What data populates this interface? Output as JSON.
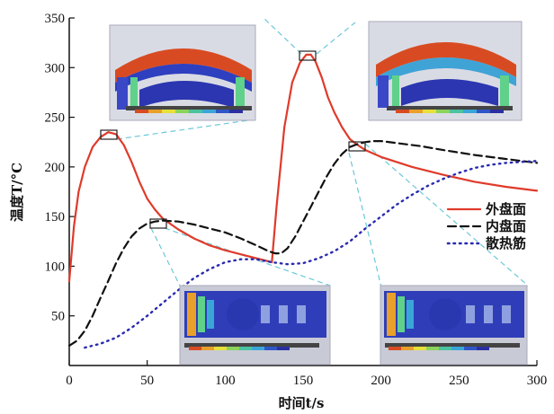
{
  "chart_data": {
    "type": "line",
    "xlabel": "时间t/s",
    "ylabel": "温度T/°C",
    "xlim": [
      0,
      300
    ],
    "ylim": [
      0,
      350
    ],
    "x_ticks": [
      "0",
      "50",
      "100",
      "150",
      "200",
      "250",
      "300"
    ],
    "y_ticks": [
      "50",
      "100",
      "150",
      "200",
      "250",
      "300",
      "350"
    ],
    "grid": false,
    "legend_position": "right",
    "series": [
      {
        "name": "外盘面",
        "color": "#e03a2a",
        "style": "solid",
        "points": [
          [
            0,
            85
          ],
          [
            3,
            140
          ],
          [
            6,
            175
          ],
          [
            10,
            200
          ],
          [
            15,
            220
          ],
          [
            20,
            230
          ],
          [
            25,
            235
          ],
          [
            30,
            233
          ],
          [
            35,
            222
          ],
          [
            40,
            205
          ],
          [
            45,
            185
          ],
          [
            50,
            168
          ],
          [
            55,
            157
          ],
          [
            60,
            148
          ],
          [
            70,
            137
          ],
          [
            80,
            128
          ],
          [
            90,
            121
          ],
          [
            100,
            116
          ],
          [
            110,
            112
          ],
          [
            120,
            108
          ],
          [
            130,
            104
          ],
          [
            133,
            160
          ],
          [
            138,
            240
          ],
          [
            143,
            285
          ],
          [
            148,
            305
          ],
          [
            152,
            313
          ],
          [
            155,
            313
          ],
          [
            158,
            306
          ],
          [
            162,
            290
          ],
          [
            166,
            270
          ],
          [
            170,
            255
          ],
          [
            175,
            240
          ],
          [
            180,
            228
          ],
          [
            185,
            222
          ],
          [
            190,
            217
          ],
          [
            200,
            210
          ],
          [
            220,
            200
          ],
          [
            240,
            192
          ],
          [
            260,
            185
          ],
          [
            280,
            180
          ],
          [
            300,
            176
          ]
        ]
      },
      {
        "name": "内盘面",
        "color": "#111111",
        "style": "dashed",
        "points": [
          [
            0,
            20
          ],
          [
            5,
            25
          ],
          [
            10,
            35
          ],
          [
            15,
            50
          ],
          [
            20,
            68
          ],
          [
            25,
            85
          ],
          [
            30,
            103
          ],
          [
            35,
            118
          ],
          [
            40,
            130
          ],
          [
            45,
            138
          ],
          [
            50,
            143
          ],
          [
            55,
            145
          ],
          [
            60,
            146
          ],
          [
            70,
            145
          ],
          [
            80,
            142
          ],
          [
            90,
            138
          ],
          [
            100,
            134
          ],
          [
            110,
            128
          ],
          [
            120,
            121
          ],
          [
            128,
            115
          ],
          [
            132,
            113
          ],
          [
            136,
            113
          ],
          [
            140,
            118
          ],
          [
            145,
            130
          ],
          [
            150,
            145
          ],
          [
            155,
            160
          ],
          [
            160,
            175
          ],
          [
            165,
            190
          ],
          [
            170,
            203
          ],
          [
            175,
            213
          ],
          [
            180,
            220
          ],
          [
            185,
            223
          ],
          [
            190,
            225
          ],
          [
            195,
            226
          ],
          [
            200,
            226
          ],
          [
            210,
            224
          ],
          [
            225,
            221
          ],
          [
            240,
            217
          ],
          [
            260,
            212
          ],
          [
            280,
            208
          ],
          [
            300,
            204
          ]
        ]
      },
      {
        "name": "散热筋",
        "color": "#2a2ab0",
        "style": "dotted",
        "points": [
          [
            10,
            18
          ],
          [
            20,
            22
          ],
          [
            30,
            28
          ],
          [
            40,
            38
          ],
          [
            50,
            50
          ],
          [
            60,
            63
          ],
          [
            70,
            76
          ],
          [
            80,
            88
          ],
          [
            90,
            97
          ],
          [
            100,
            104
          ],
          [
            110,
            107
          ],
          [
            120,
            107
          ],
          [
            130,
            104
          ],
          [
            140,
            102
          ],
          [
            150,
            103
          ],
          [
            160,
            108
          ],
          [
            170,
            115
          ],
          [
            180,
            125
          ],
          [
            190,
            138
          ],
          [
            200,
            150
          ],
          [
            210,
            162
          ],
          [
            220,
            172
          ],
          [
            230,
            181
          ],
          [
            240,
            188
          ],
          [
            250,
            194
          ],
          [
            260,
            199
          ],
          [
            270,
            202
          ],
          [
            280,
            204
          ],
          [
            290,
            205
          ],
          [
            300,
            206
          ]
        ]
      }
    ]
  }
}
